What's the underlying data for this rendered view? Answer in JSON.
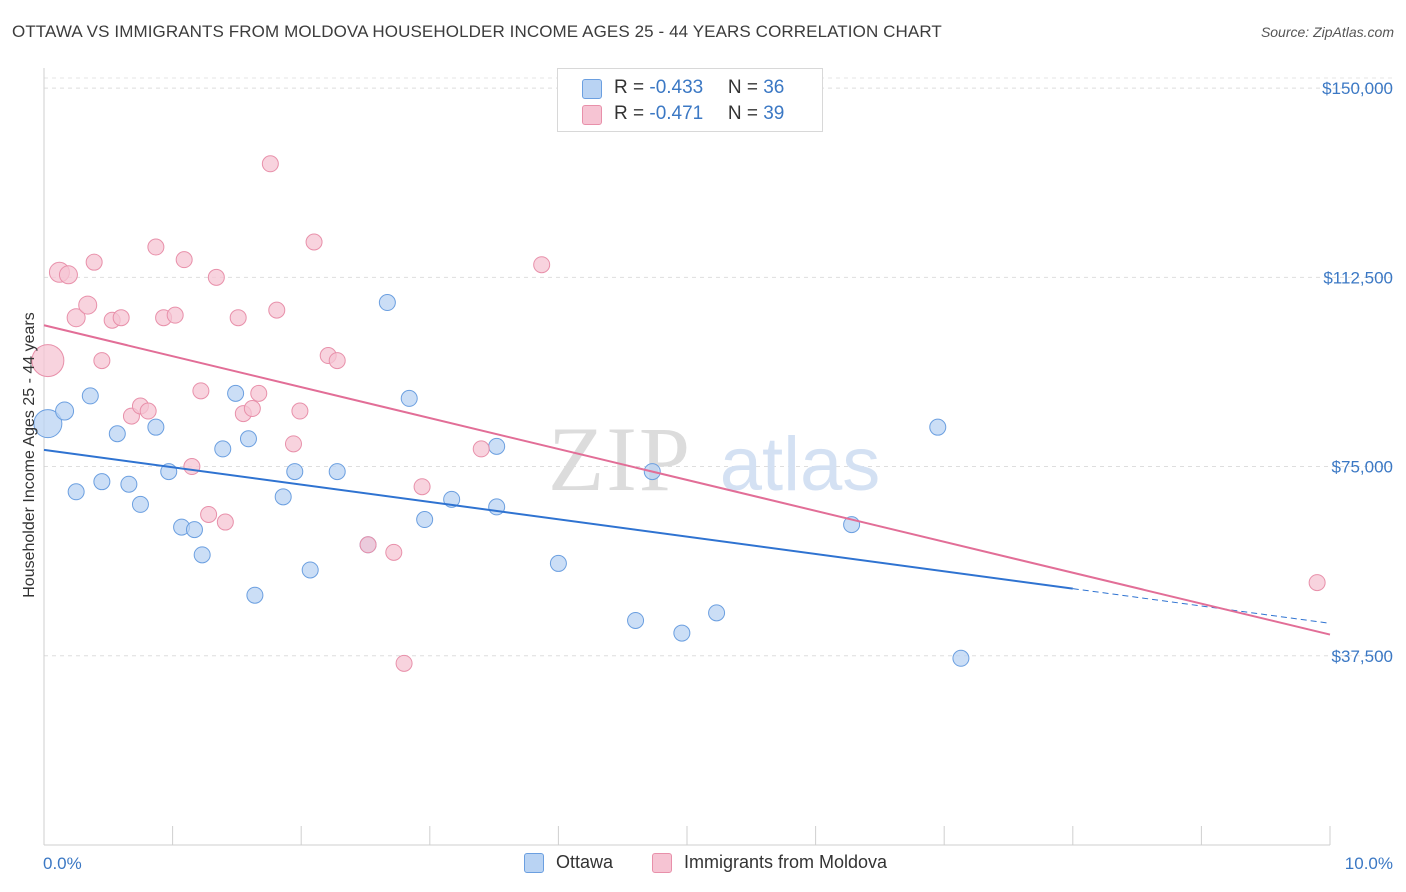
{
  "title": "OTTAWA VS IMMIGRANTS FROM MOLDOVA HOUSEHOLDER INCOME AGES 25 - 44 YEARS CORRELATION CHART",
  "source": "Source: ZipAtlas.com",
  "watermark": {
    "zip": "ZIP",
    "atlas": "atlas"
  },
  "legend": {
    "rows": [
      {
        "r_label": "R = ",
        "r_value": "-0.433",
        "n_label": "N = ",
        "n_value": "36"
      },
      {
        "r_label": "R = ",
        "r_value": "-0.471",
        "n_label": "N = ",
        "n_value": "39"
      }
    ]
  },
  "chart_data": {
    "type": "scatter",
    "title": "OTTAWA VS IMMIGRANTS FROM MOLDOVA HOUSEHOLDER INCOME AGES 25 - 44 YEARS CORRELATION CHART",
    "xlabel": "",
    "ylabel": "Householder Income Ages 25 - 44 years",
    "xlim": [
      0,
      10
    ],
    "ylim": [
      0,
      152000
    ],
    "x_tick_labels": [
      "0.0%",
      "10.0%"
    ],
    "y_ticks": [
      37500,
      75000,
      112500,
      150000
    ],
    "y_tick_labels": [
      "$37,500",
      "$75,000",
      "$112,500",
      "$150,000"
    ],
    "grid": "horizontal dashed",
    "legend_position": "top-center and bottom",
    "series": [
      {
        "name": "Ottawa",
        "color": "#6b9fe0",
        "fill": "#b9d3f3",
        "trend": {
          "x0": 0.0,
          "y0": 78300,
          "x1": 8.0,
          "y1": 50800,
          "dashed_to_x": 9.98,
          "dashed_to_y": 44000
        },
        "points": [
          {
            "x": 0.03,
            "y": 83500,
            "s": 14
          },
          {
            "x": 0.16,
            "y": 86000,
            "s": 9
          },
          {
            "x": 0.25,
            "y": 70000,
            "s": 8
          },
          {
            "x": 0.36,
            "y": 89000,
            "s": 8
          },
          {
            "x": 0.45,
            "y": 72000,
            "s": 8
          },
          {
            "x": 0.57,
            "y": 81500,
            "s": 8
          },
          {
            "x": 0.66,
            "y": 71500,
            "s": 8
          },
          {
            "x": 0.75,
            "y": 67500,
            "s": 8
          },
          {
            "x": 0.87,
            "y": 82800,
            "s": 8
          },
          {
            "x": 0.97,
            "y": 74000,
            "s": 8
          },
          {
            "x": 1.07,
            "y": 63000,
            "s": 8
          },
          {
            "x": 1.17,
            "y": 62500,
            "s": 8
          },
          {
            "x": 1.23,
            "y": 57500,
            "s": 8
          },
          {
            "x": 1.39,
            "y": 78500,
            "s": 8
          },
          {
            "x": 1.49,
            "y": 89500,
            "s": 8
          },
          {
            "x": 1.59,
            "y": 80500,
            "s": 8
          },
          {
            "x": 1.64,
            "y": 49500,
            "s": 8
          },
          {
            "x": 1.86,
            "y": 69000,
            "s": 8
          },
          {
            "x": 1.95,
            "y": 74000,
            "s": 8
          },
          {
            "x": 2.07,
            "y": 54500,
            "s": 8
          },
          {
            "x": 2.28,
            "y": 74000,
            "s": 8
          },
          {
            "x": 2.52,
            "y": 59500,
            "s": 8
          },
          {
            "x": 2.67,
            "y": 107500,
            "s": 8
          },
          {
            "x": 2.84,
            "y": 88500,
            "s": 8
          },
          {
            "x": 2.96,
            "y": 64500,
            "s": 8
          },
          {
            "x": 3.17,
            "y": 68500,
            "s": 8
          },
          {
            "x": 3.52,
            "y": 79000,
            "s": 8
          },
          {
            "x": 3.52,
            "y": 67000,
            "s": 8
          },
          {
            "x": 4.0,
            "y": 55800,
            "s": 8
          },
          {
            "x": 4.6,
            "y": 44500,
            "s": 8
          },
          {
            "x": 4.73,
            "y": 74000,
            "s": 8
          },
          {
            "x": 4.96,
            "y": 42000,
            "s": 8
          },
          {
            "x": 5.23,
            "y": 46000,
            "s": 8
          },
          {
            "x": 6.28,
            "y": 63500,
            "s": 8
          },
          {
            "x": 6.95,
            "y": 82800,
            "s": 8
          },
          {
            "x": 7.13,
            "y": 37000,
            "s": 8
          }
        ]
      },
      {
        "name": "Immigrants from Moldova",
        "color": "#e890aa",
        "fill": "#f6c4d3",
        "trend": {
          "x0": 0.0,
          "y0": 103000,
          "x1": 10.0,
          "y1": 41700
        },
        "points": [
          {
            "x": 0.03,
            "y": 96000,
            "s": 16
          },
          {
            "x": 0.12,
            "y": 113500,
            "s": 10
          },
          {
            "x": 0.19,
            "y": 113000,
            "s": 9
          },
          {
            "x": 0.25,
            "y": 104500,
            "s": 9
          },
          {
            "x": 0.34,
            "y": 107000,
            "s": 9
          },
          {
            "x": 0.39,
            "y": 115500,
            "s": 8
          },
          {
            "x": 0.45,
            "y": 96000,
            "s": 8
          },
          {
            "x": 0.53,
            "y": 104000,
            "s": 8
          },
          {
            "x": 0.6,
            "y": 104500,
            "s": 8
          },
          {
            "x": 0.68,
            "y": 85000,
            "s": 8
          },
          {
            "x": 0.75,
            "y": 87000,
            "s": 8
          },
          {
            "x": 0.81,
            "y": 86000,
            "s": 8
          },
          {
            "x": 0.87,
            "y": 118500,
            "s": 8
          },
          {
            "x": 0.93,
            "y": 104500,
            "s": 8
          },
          {
            "x": 1.02,
            "y": 105000,
            "s": 8
          },
          {
            "x": 1.09,
            "y": 116000,
            "s": 8
          },
          {
            "x": 1.15,
            "y": 75000,
            "s": 8
          },
          {
            "x": 1.22,
            "y": 90000,
            "s": 8
          },
          {
            "x": 1.28,
            "y": 65500,
            "s": 8
          },
          {
            "x": 1.34,
            "y": 112500,
            "s": 8
          },
          {
            "x": 1.41,
            "y": 64000,
            "s": 8
          },
          {
            "x": 1.51,
            "y": 104500,
            "s": 8
          },
          {
            "x": 1.55,
            "y": 85500,
            "s": 8
          },
          {
            "x": 1.62,
            "y": 86500,
            "s": 8
          },
          {
            "x": 1.67,
            "y": 89500,
            "s": 8
          },
          {
            "x": 1.76,
            "y": 135000,
            "s": 8
          },
          {
            "x": 1.81,
            "y": 106000,
            "s": 8
          },
          {
            "x": 1.94,
            "y": 79500,
            "s": 8
          },
          {
            "x": 1.99,
            "y": 86000,
            "s": 8
          },
          {
            "x": 2.1,
            "y": 119500,
            "s": 8
          },
          {
            "x": 2.21,
            "y": 97000,
            "s": 8
          },
          {
            "x": 2.28,
            "y": 96000,
            "s": 8
          },
          {
            "x": 2.52,
            "y": 59500,
            "s": 8
          },
          {
            "x": 2.72,
            "y": 58000,
            "s": 8
          },
          {
            "x": 2.8,
            "y": 36000,
            "s": 8
          },
          {
            "x": 2.94,
            "y": 71000,
            "s": 8
          },
          {
            "x": 3.4,
            "y": 78500,
            "s": 8
          },
          {
            "x": 3.87,
            "y": 115000,
            "s": 8
          },
          {
            "x": 9.9,
            "y": 52000,
            "s": 8
          }
        ]
      }
    ]
  },
  "colors": {
    "ottawa_fill": "#b9d3f3",
    "ottawa_stroke": "#6b9fe0",
    "ottawa_line": "#2f73d1",
    "moldova_fill": "#f6c4d3",
    "moldova_stroke": "#e890aa",
    "moldova_line": "#e26e97",
    "tick_text": "#3b78c4"
  }
}
